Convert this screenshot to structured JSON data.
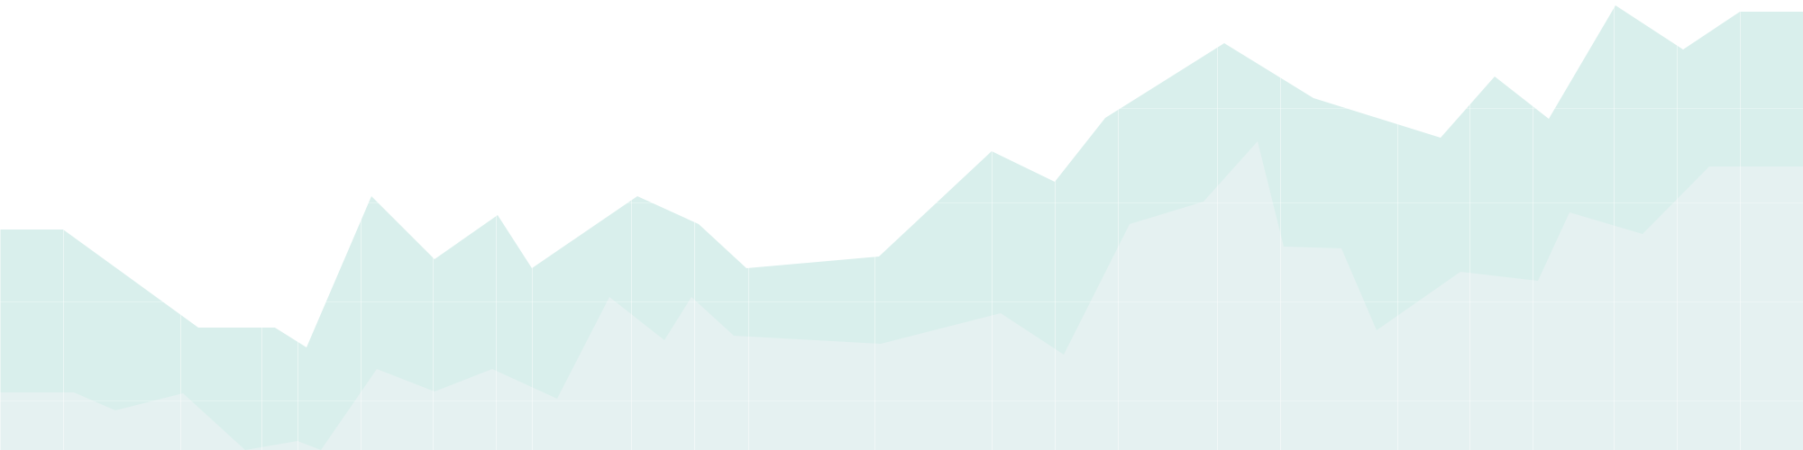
{
  "chart_data": {
    "type": "area",
    "title": "",
    "xlabel": "",
    "ylabel": "",
    "x": [
      -20,
      0,
      70,
      200,
      290,
      330,
      400,
      480,
      550,
      590,
      700,
      770,
      830,
      970,
      1100,
      1170,
      1240,
      1350,
      1420,
      1550,
      1630,
      1700,
      1790,
      1860,
      1930,
      2010
    ],
    "ylim": [
      0,
      500
    ],
    "grid": true,
    "series": [
      {
        "fill": "#d9efec",
        "points": [
          [
            -20,
            255
          ],
          [
            0,
            255
          ],
          [
            70,
            255
          ],
          [
            220,
            364
          ],
          [
            305,
            364
          ],
          [
            340,
            386
          ],
          [
            412,
            218
          ],
          [
            482,
            288
          ],
          [
            552,
            239
          ],
          [
            590,
            298
          ],
          [
            707,
            218
          ],
          [
            775,
            249
          ],
          [
            828,
            298
          ],
          [
            975,
            285
          ],
          [
            1100,
            168
          ],
          [
            1170,
            202
          ],
          [
            1226,
            131
          ],
          [
            1358,
            48
          ],
          [
            1457,
            109
          ],
          [
            1598,
            153
          ],
          [
            1658,
            85
          ],
          [
            1718,
            132
          ],
          [
            1792,
            6
          ],
          [
            1867,
            55
          ],
          [
            1930,
            13
          ],
          [
            2010,
            13
          ]
        ]
      },
      {
        "fill": "#e5f1f1",
        "points": [
          [
            -20,
            436
          ],
          [
            0,
            436
          ],
          [
            82,
            436
          ],
          [
            128,
            456
          ],
          [
            203,
            437
          ],
          [
            272,
            500
          ],
          [
            330,
            490
          ],
          [
            356,
            500
          ],
          [
            418,
            410
          ],
          [
            482,
            435
          ],
          [
            546,
            410
          ],
          [
            618,
            443
          ],
          [
            676,
            330
          ],
          [
            737,
            378
          ],
          [
            767,
            330
          ],
          [
            814,
            373
          ],
          [
            977,
            382
          ],
          [
            1110,
            348
          ],
          [
            1180,
            394
          ],
          [
            1253,
            249
          ],
          [
            1335,
            224
          ],
          [
            1395,
            157
          ],
          [
            1424,
            274
          ],
          [
            1488,
            276
          ],
          [
            1527,
            367
          ],
          [
            1620,
            302
          ],
          [
            1706,
            312
          ],
          [
            1741,
            236
          ],
          [
            1822,
            260
          ],
          [
            1896,
            185
          ],
          [
            1960,
            185
          ],
          [
            2010,
            185
          ]
        ]
      }
    ]
  },
  "colors": {
    "background": "#ffffff",
    "grid": "#ffffff"
  }
}
